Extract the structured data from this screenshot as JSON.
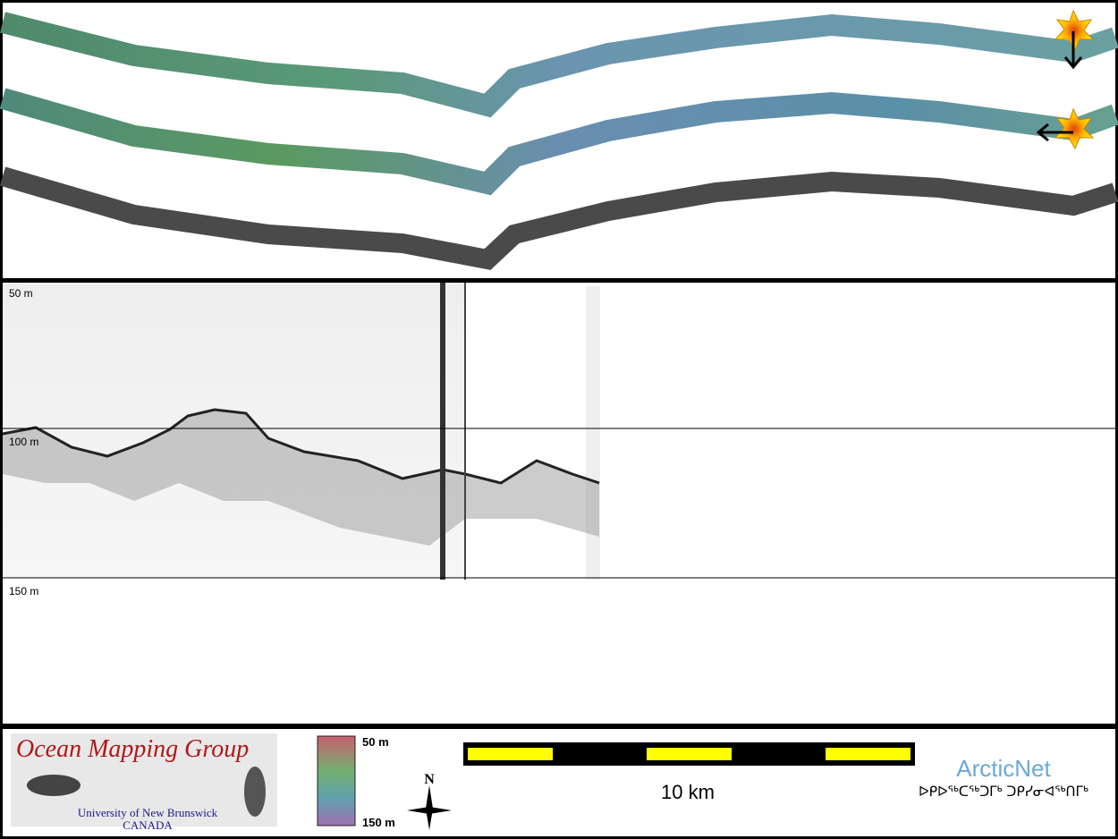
{
  "profile": {
    "depth_labels": [
      "50 m",
      "100 m",
      "150 m"
    ]
  },
  "footer": {
    "logo_title": "Ocean Mapping Group",
    "logo_university": "University of New Brunswick",
    "logo_country": "CANADA",
    "colorbar_top": "50 m",
    "colorbar_bottom": "150 m",
    "compass": "N",
    "scale_label": "10 km",
    "partner": "ArcticNet",
    "partner_inuktitut": "ᐅᑭᐅᖅᑕᖅᑐᒥᒃ ᑐᑭᓯᓂᐊᖅᑎᒥᒃ"
  }
}
